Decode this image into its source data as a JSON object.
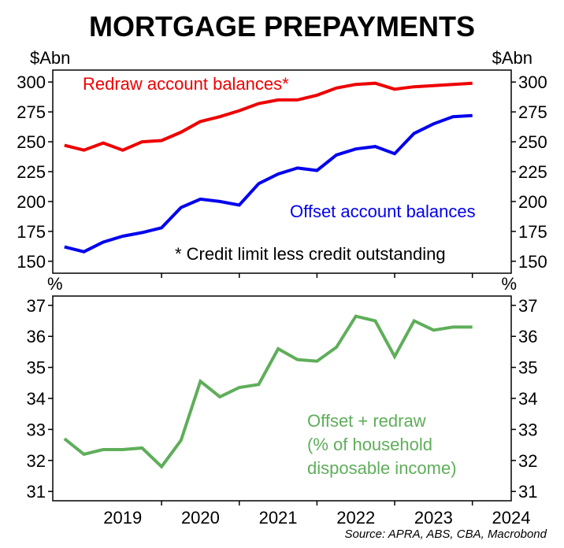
{
  "title": "MORTGAGE PREPAYMENTS",
  "source": "Source: APRA, ABS, CBA, Macrobond",
  "x_axis": {
    "tick_labels": [
      "2019",
      "2020",
      "2021",
      "2022",
      "2023",
      "2024"
    ],
    "range": [
      2018.6,
      2024.5
    ]
  },
  "colors": {
    "redraw": "#ee0000",
    "offset": "#0000ee",
    "share": "#5fae5a",
    "axis": "#000000",
    "text": "#000000"
  },
  "chart_data": [
    {
      "type": "line",
      "title": "",
      "ylabel_left": "$Abn",
      "ylabel_right": "$Abn",
      "ylim": [
        140,
        310
      ],
      "yticks": [
        "150",
        "175",
        "200",
        "225",
        "250",
        "275",
        "300"
      ],
      "grid": false,
      "series": [
        {
          "name": "Redraw account balances*",
          "color": "#ee0000",
          "x": [
            2018.75,
            2019.0,
            2019.25,
            2019.5,
            2019.75,
            2020.0,
            2020.25,
            2020.5,
            2020.75,
            2021.0,
            2021.25,
            2021.5,
            2021.75,
            2022.0,
            2022.25,
            2022.5,
            2022.75,
            2023.0,
            2023.25,
            2023.5,
            2023.75,
            2024.0
          ],
          "values": [
            247,
            243,
            249,
            243,
            250,
            251,
            258,
            267,
            271,
            276,
            282,
            285,
            285,
            289,
            295,
            298,
            299,
            294,
            296,
            297,
            298,
            299
          ]
        },
        {
          "name": "Offset account balances",
          "color": "#0000ee",
          "x": [
            2018.75,
            2019.0,
            2019.25,
            2019.5,
            2019.75,
            2020.0,
            2020.25,
            2020.5,
            2020.75,
            2021.0,
            2021.25,
            2021.5,
            2021.75,
            2022.0,
            2022.25,
            2022.5,
            2022.75,
            2023.0,
            2023.25,
            2023.5,
            2023.75,
            2024.0
          ],
          "values": [
            162,
            158,
            166,
            171,
            174,
            178,
            195,
            202,
            200,
            197,
            215,
            223,
            228,
            226,
            239,
            244,
            246,
            240,
            257,
            265,
            271,
            272
          ]
        }
      ],
      "annotations": [
        "* Credit limit less credit outstanding"
      ]
    },
    {
      "type": "line",
      "title": "",
      "ylabel_left": "%",
      "ylabel_right": "%",
      "ylim": [
        30.7,
        37.3
      ],
      "yticks": [
        "31",
        "32",
        "33",
        "34",
        "35",
        "36",
        "37"
      ],
      "grid": false,
      "series": [
        {
          "name": "Offset + redraw (% of household disposable income)",
          "label_lines": [
            "Offset + redraw",
            "(% of household",
            "disposable income)"
          ],
          "color": "#5fae5a",
          "x": [
            2018.75,
            2019.0,
            2019.25,
            2019.5,
            2019.75,
            2020.0,
            2020.25,
            2020.5,
            2020.75,
            2021.0,
            2021.25,
            2021.5,
            2021.75,
            2022.0,
            2022.25,
            2022.5,
            2022.75,
            2023.0,
            2023.25,
            2023.5,
            2023.75,
            2024.0
          ],
          "values": [
            32.7,
            32.2,
            32.35,
            32.35,
            32.4,
            31.8,
            32.65,
            34.55,
            34.05,
            34.35,
            34.45,
            35.6,
            35.25,
            35.2,
            35.65,
            36.65,
            36.5,
            35.35,
            36.5,
            36.2,
            36.3,
            36.3
          ]
        }
      ]
    }
  ]
}
